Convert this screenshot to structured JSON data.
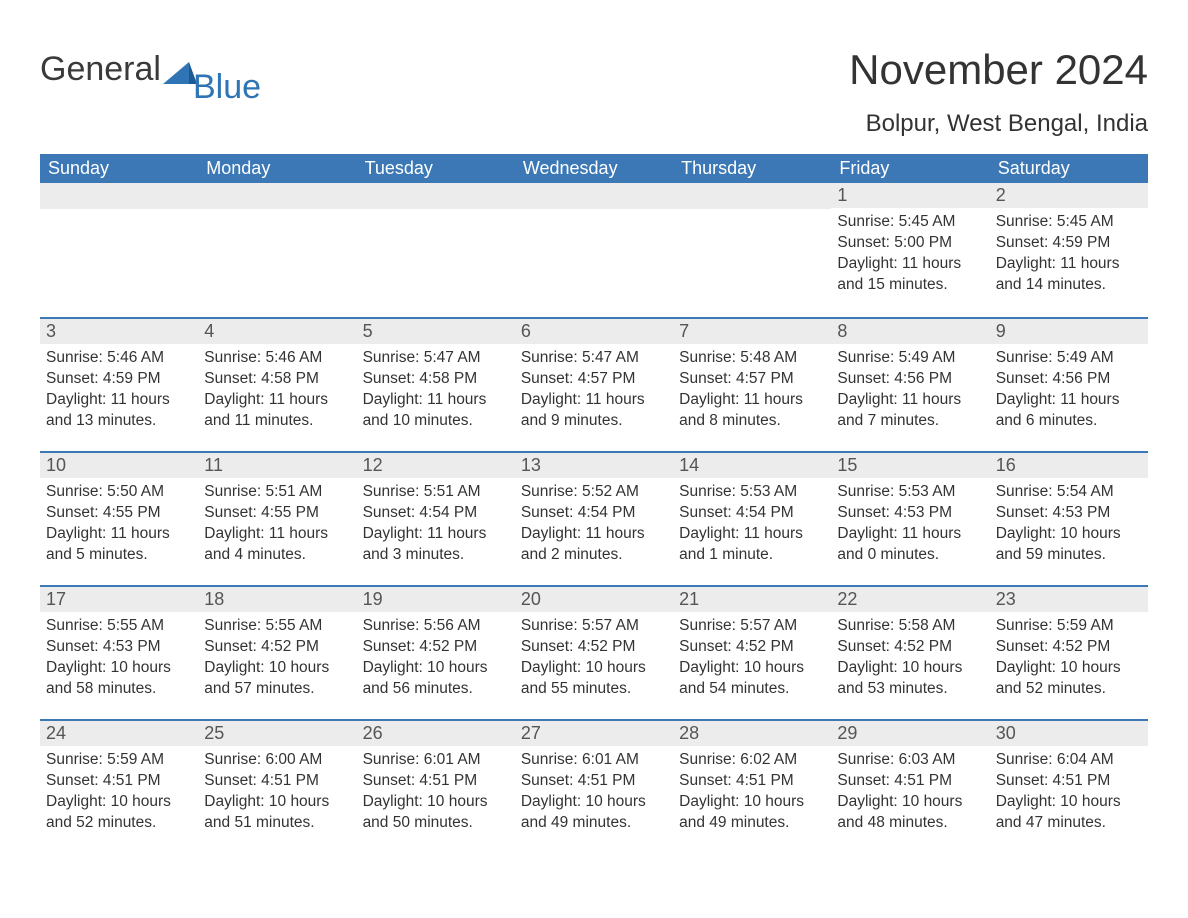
{
  "logo": {
    "text1": "General",
    "text2": "Blue",
    "triangle_color": "#2f75b5"
  },
  "title": "November 2024",
  "location": "Bolpur, West Bengal, India",
  "colors": {
    "header_bg": "#3b78b5",
    "header_text": "#ffffff",
    "daynum_bg": "#ececec",
    "daynum_border": "#3b78b5",
    "body_text": "#333333",
    "page_bg": "#ffffff"
  },
  "weekdays": [
    "Sunday",
    "Monday",
    "Tuesday",
    "Wednesday",
    "Thursday",
    "Friday",
    "Saturday"
  ],
  "weeks": [
    [
      {
        "day": "",
        "sunrise": "",
        "sunset": "",
        "daylight": ""
      },
      {
        "day": "",
        "sunrise": "",
        "sunset": "",
        "daylight": ""
      },
      {
        "day": "",
        "sunrise": "",
        "sunset": "",
        "daylight": ""
      },
      {
        "day": "",
        "sunrise": "",
        "sunset": "",
        "daylight": ""
      },
      {
        "day": "",
        "sunrise": "",
        "sunset": "",
        "daylight": ""
      },
      {
        "day": "1",
        "sunrise": "Sunrise: 5:45 AM",
        "sunset": "Sunset: 5:00 PM",
        "daylight": "Daylight: 11 hours and 15 minutes."
      },
      {
        "day": "2",
        "sunrise": "Sunrise: 5:45 AM",
        "sunset": "Sunset: 4:59 PM",
        "daylight": "Daylight: 11 hours and 14 minutes."
      }
    ],
    [
      {
        "day": "3",
        "sunrise": "Sunrise: 5:46 AM",
        "sunset": "Sunset: 4:59 PM",
        "daylight": "Daylight: 11 hours and 13 minutes."
      },
      {
        "day": "4",
        "sunrise": "Sunrise: 5:46 AM",
        "sunset": "Sunset: 4:58 PM",
        "daylight": "Daylight: 11 hours and 11 minutes."
      },
      {
        "day": "5",
        "sunrise": "Sunrise: 5:47 AM",
        "sunset": "Sunset: 4:58 PM",
        "daylight": "Daylight: 11 hours and 10 minutes."
      },
      {
        "day": "6",
        "sunrise": "Sunrise: 5:47 AM",
        "sunset": "Sunset: 4:57 PM",
        "daylight": "Daylight: 11 hours and 9 minutes."
      },
      {
        "day": "7",
        "sunrise": "Sunrise: 5:48 AM",
        "sunset": "Sunset: 4:57 PM",
        "daylight": "Daylight: 11 hours and 8 minutes."
      },
      {
        "day": "8",
        "sunrise": "Sunrise: 5:49 AM",
        "sunset": "Sunset: 4:56 PM",
        "daylight": "Daylight: 11 hours and 7 minutes."
      },
      {
        "day": "9",
        "sunrise": "Sunrise: 5:49 AM",
        "sunset": "Sunset: 4:56 PM",
        "daylight": "Daylight: 11 hours and 6 minutes."
      }
    ],
    [
      {
        "day": "10",
        "sunrise": "Sunrise: 5:50 AM",
        "sunset": "Sunset: 4:55 PM",
        "daylight": "Daylight: 11 hours and 5 minutes."
      },
      {
        "day": "11",
        "sunrise": "Sunrise: 5:51 AM",
        "sunset": "Sunset: 4:55 PM",
        "daylight": "Daylight: 11 hours and 4 minutes."
      },
      {
        "day": "12",
        "sunrise": "Sunrise: 5:51 AM",
        "sunset": "Sunset: 4:54 PM",
        "daylight": "Daylight: 11 hours and 3 minutes."
      },
      {
        "day": "13",
        "sunrise": "Sunrise: 5:52 AM",
        "sunset": "Sunset: 4:54 PM",
        "daylight": "Daylight: 11 hours and 2 minutes."
      },
      {
        "day": "14",
        "sunrise": "Sunrise: 5:53 AM",
        "sunset": "Sunset: 4:54 PM",
        "daylight": "Daylight: 11 hours and 1 minute."
      },
      {
        "day": "15",
        "sunrise": "Sunrise: 5:53 AM",
        "sunset": "Sunset: 4:53 PM",
        "daylight": "Daylight: 11 hours and 0 minutes."
      },
      {
        "day": "16",
        "sunrise": "Sunrise: 5:54 AM",
        "sunset": "Sunset: 4:53 PM",
        "daylight": "Daylight: 10 hours and 59 minutes."
      }
    ],
    [
      {
        "day": "17",
        "sunrise": "Sunrise: 5:55 AM",
        "sunset": "Sunset: 4:53 PM",
        "daylight": "Daylight: 10 hours and 58 minutes."
      },
      {
        "day": "18",
        "sunrise": "Sunrise: 5:55 AM",
        "sunset": "Sunset: 4:52 PM",
        "daylight": "Daylight: 10 hours and 57 minutes."
      },
      {
        "day": "19",
        "sunrise": "Sunrise: 5:56 AM",
        "sunset": "Sunset: 4:52 PM",
        "daylight": "Daylight: 10 hours and 56 minutes."
      },
      {
        "day": "20",
        "sunrise": "Sunrise: 5:57 AM",
        "sunset": "Sunset: 4:52 PM",
        "daylight": "Daylight: 10 hours and 55 minutes."
      },
      {
        "day": "21",
        "sunrise": "Sunrise: 5:57 AM",
        "sunset": "Sunset: 4:52 PM",
        "daylight": "Daylight: 10 hours and 54 minutes."
      },
      {
        "day": "22",
        "sunrise": "Sunrise: 5:58 AM",
        "sunset": "Sunset: 4:52 PM",
        "daylight": "Daylight: 10 hours and 53 minutes."
      },
      {
        "day": "23",
        "sunrise": "Sunrise: 5:59 AM",
        "sunset": "Sunset: 4:52 PM",
        "daylight": "Daylight: 10 hours and 52 minutes."
      }
    ],
    [
      {
        "day": "24",
        "sunrise": "Sunrise: 5:59 AM",
        "sunset": "Sunset: 4:51 PM",
        "daylight": "Daylight: 10 hours and 52 minutes."
      },
      {
        "day": "25",
        "sunrise": "Sunrise: 6:00 AM",
        "sunset": "Sunset: 4:51 PM",
        "daylight": "Daylight: 10 hours and 51 minutes."
      },
      {
        "day": "26",
        "sunrise": "Sunrise: 6:01 AM",
        "sunset": "Sunset: 4:51 PM",
        "daylight": "Daylight: 10 hours and 50 minutes."
      },
      {
        "day": "27",
        "sunrise": "Sunrise: 6:01 AM",
        "sunset": "Sunset: 4:51 PM",
        "daylight": "Daylight: 10 hours and 49 minutes."
      },
      {
        "day": "28",
        "sunrise": "Sunrise: 6:02 AM",
        "sunset": "Sunset: 4:51 PM",
        "daylight": "Daylight: 10 hours and 49 minutes."
      },
      {
        "day": "29",
        "sunrise": "Sunrise: 6:03 AM",
        "sunset": "Sunset: 4:51 PM",
        "daylight": "Daylight: 10 hours and 48 minutes."
      },
      {
        "day": "30",
        "sunrise": "Sunrise: 6:04 AM",
        "sunset": "Sunset: 4:51 PM",
        "daylight": "Daylight: 10 hours and 47 minutes."
      }
    ]
  ]
}
